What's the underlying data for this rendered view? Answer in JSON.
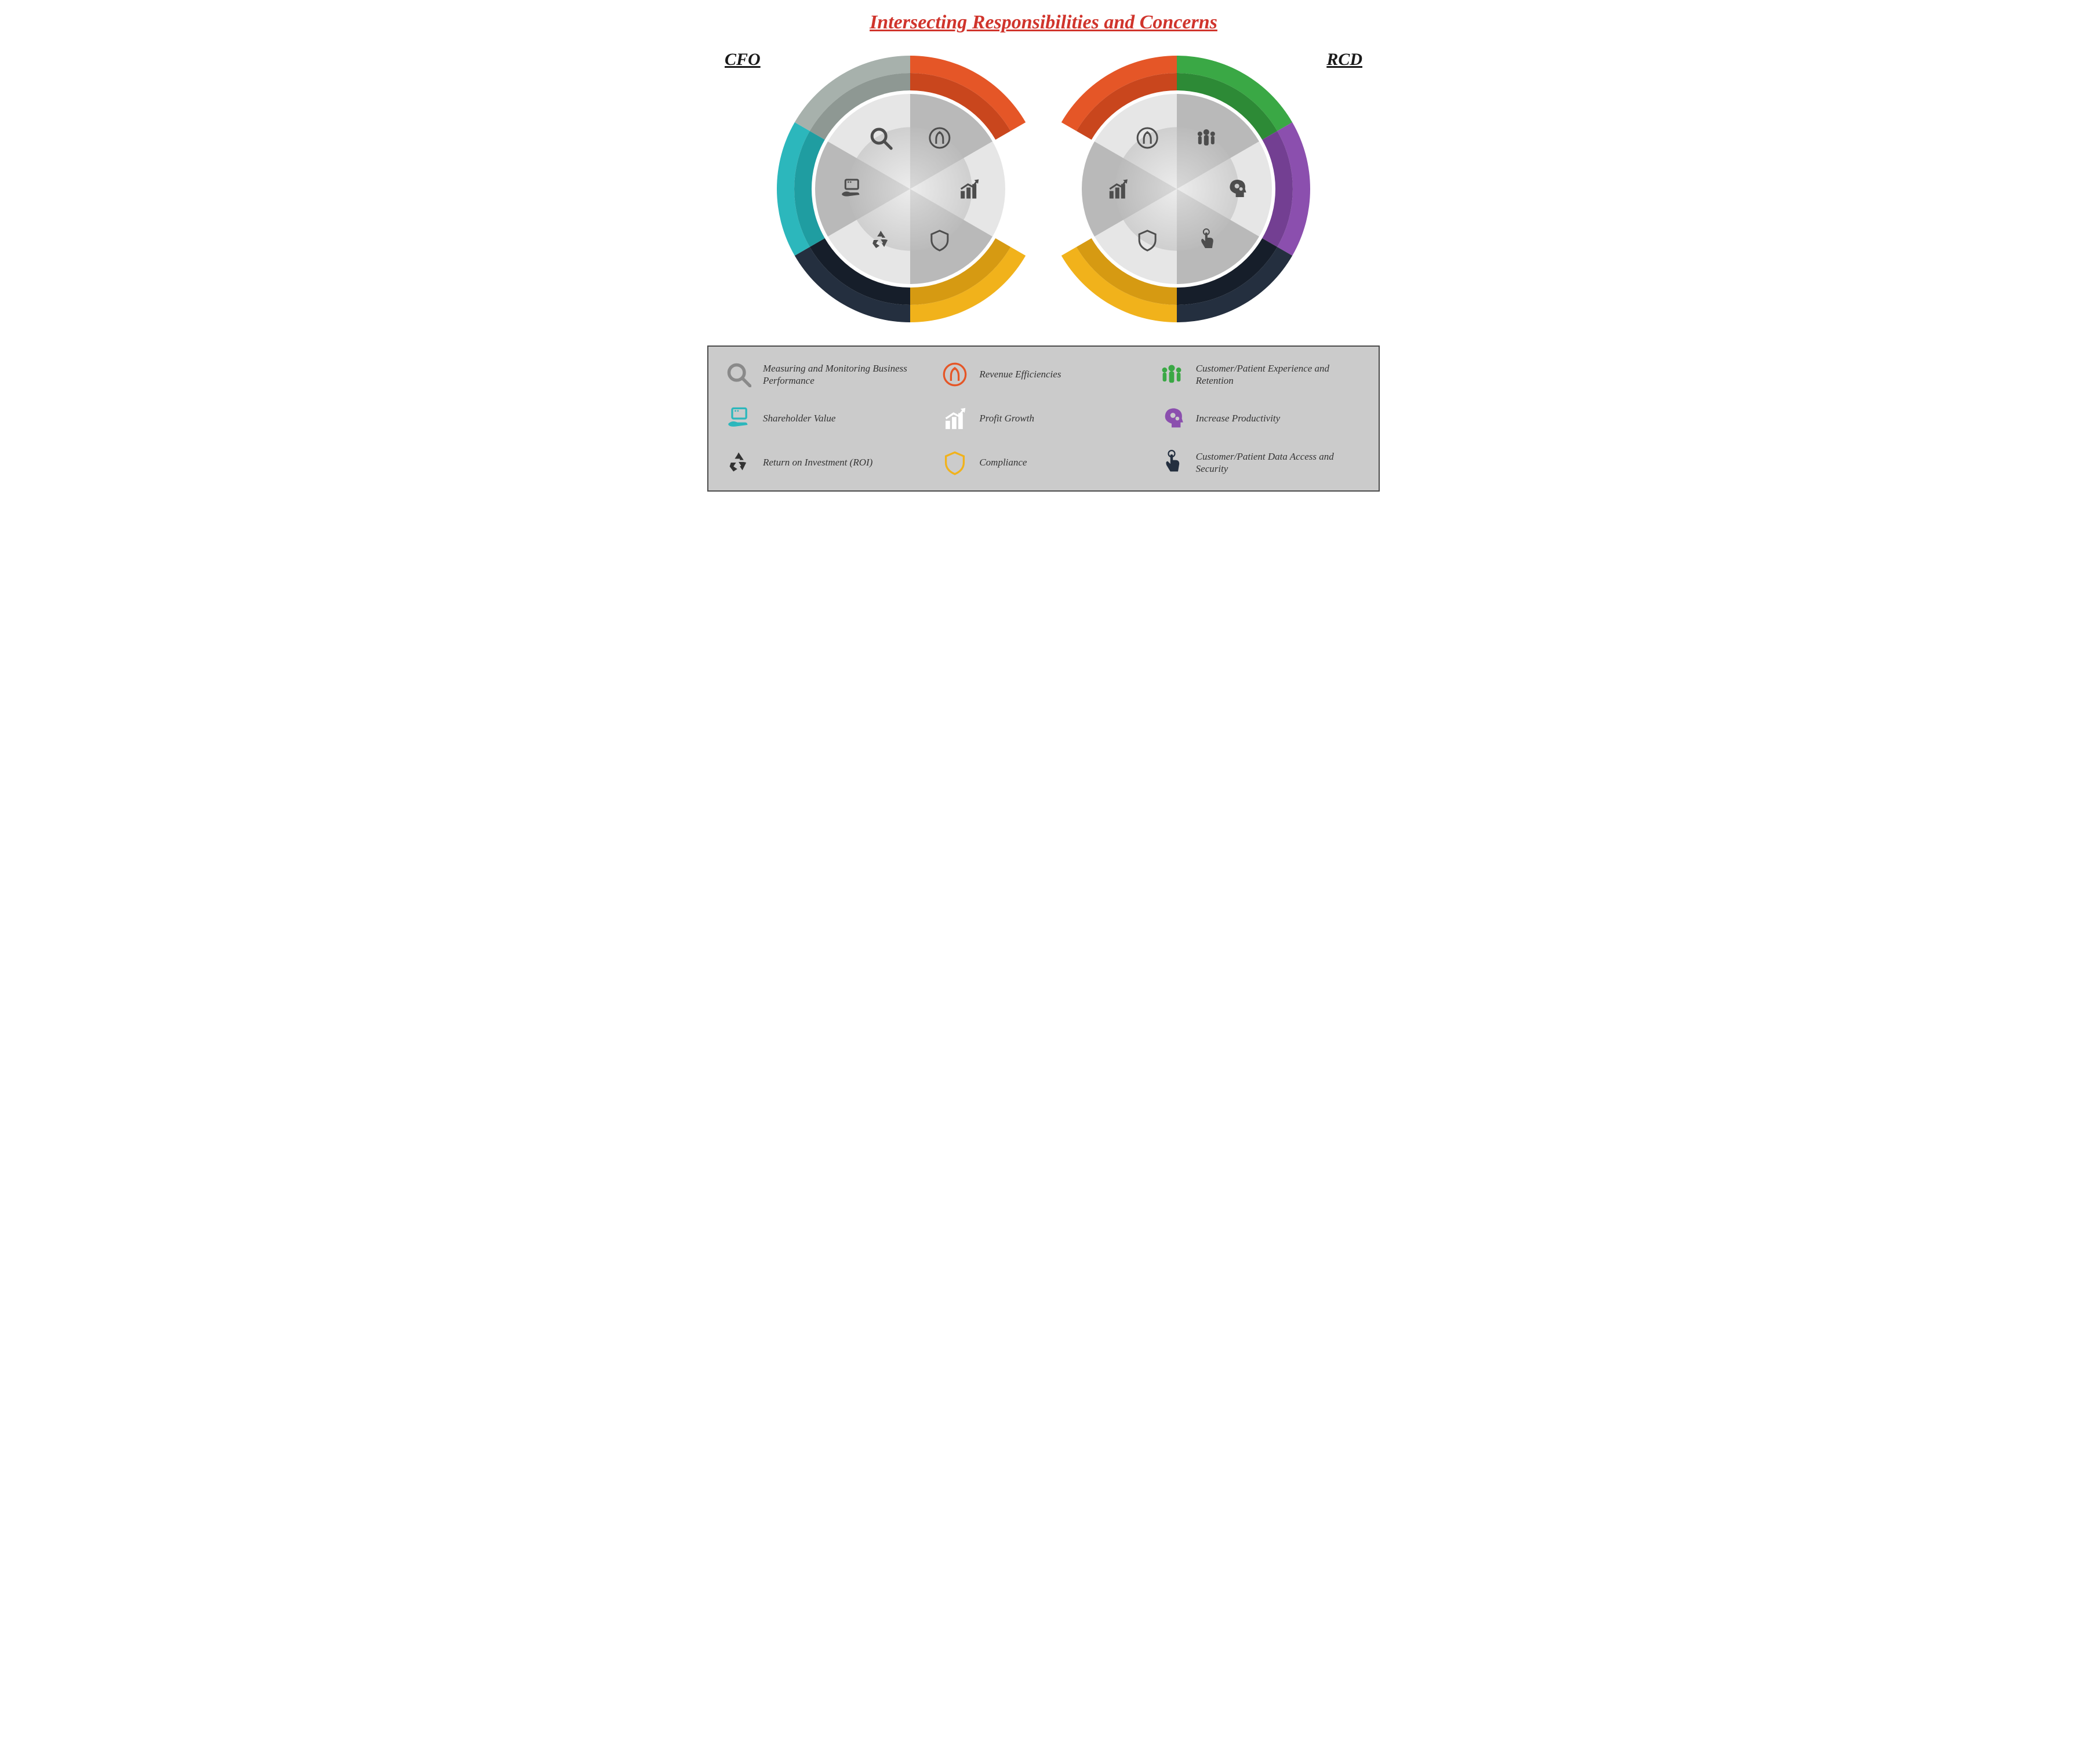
{
  "title": "Intersecting Responsibilities and Concerns",
  "title_color": "#d0342c",
  "roles": {
    "left": "CFO",
    "right": "RCD"
  },
  "background": "#ffffff",
  "legend_bg": "#cbcbcb",
  "legend_border": "#4a4a4a",
  "icon_gray": "#4d4d4d",
  "circle": {
    "outer_ring_thickness": 60,
    "inner_bg_light": "#e6e6e6",
    "inner_bg_dark": "#b9b9b9",
    "hub_gradient_in": "#f2f2f2",
    "hub_gradient_out": "#bcbcbc"
  },
  "cfo_segments": [
    {
      "key": "measuring",
      "color": "#a7b1ac",
      "shade": "#8e9893"
    },
    {
      "key": "revenue",
      "color": "#e55627",
      "shade": "#c9461d"
    },
    {
      "key": "profit",
      "color": "#ffffff",
      "shade": "#ffffff"
    },
    {
      "key": "compliance",
      "color": "#f1b21b",
      "shade": "#d69a12"
    },
    {
      "key": "roi",
      "color": "#242f3f",
      "shade": "#161e2a"
    },
    {
      "key": "shareholder",
      "color": "#2cb7bc",
      "shade": "#1f9da1"
    }
  ],
  "rcd_segments": [
    {
      "key": "revenue",
      "color": "#e55627",
      "shade": "#c9461d"
    },
    {
      "key": "customer_exp",
      "color": "#3aa845",
      "shade": "#2d8a36"
    },
    {
      "key": "productivity",
      "color": "#8b4fae",
      "shade": "#733f92"
    },
    {
      "key": "data_access",
      "color": "#242f3f",
      "shade": "#161e2a"
    },
    {
      "key": "compliance",
      "color": "#f1b21b",
      "shade": "#d69a12"
    },
    {
      "key": "profit",
      "color": "#ffffff",
      "shade": "#ffffff"
    }
  ],
  "legend_items": [
    {
      "key": "measuring",
      "label": "Measuring and Monitoring Business Performance",
      "color": "#8a8a8a"
    },
    {
      "key": "revenue",
      "label": "Revenue Efficiencies",
      "color": "#e55627"
    },
    {
      "key": "customer_exp",
      "label": "Customer/Patient Experience and Retention",
      "color": "#3aa845"
    },
    {
      "key": "shareholder",
      "label": "Shareholder Value",
      "color": "#2cb7bc"
    },
    {
      "key": "profit",
      "label": "Profit Growth",
      "color": "#ffffff"
    },
    {
      "key": "productivity",
      "label": "Increase Productivity",
      "color": "#8b4fae"
    },
    {
      "key": "roi",
      "label": "Return on Investment (ROI)",
      "color": "#333333"
    },
    {
      "key": "compliance",
      "label": "Compliance",
      "color": "#f1b21b"
    },
    {
      "key": "data_access",
      "label": "Customer/Patient Data Access and Security",
      "color": "#242f3f"
    }
  ]
}
